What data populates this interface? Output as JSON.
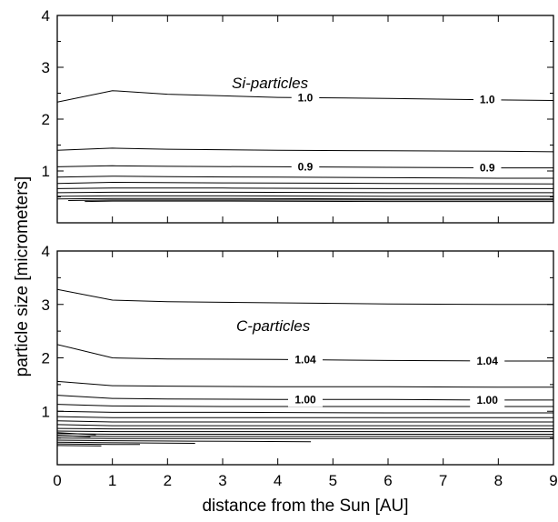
{
  "chart_data": {
    "type": "line",
    "xlabel": "distance from the Sun [AU]",
    "ylabel": "particle size [micrometers]",
    "xlim": [
      0,
      9
    ],
    "ylim": [
      0,
      4
    ],
    "x_ticks": [
      "0",
      "1",
      "2",
      "3",
      "4",
      "5",
      "6",
      "7",
      "8",
      "9"
    ],
    "y_ticks": [
      "1",
      "2",
      "3",
      "4"
    ],
    "panels": [
      {
        "label": "Si-particles",
        "contours": [
          {
            "x": [
              0,
              1,
              2,
              4,
              6,
              8,
              9
            ],
            "y": [
              2.33,
              2.55,
              2.48,
              2.42,
              2.4,
              2.37,
              2.36
            ],
            "label": "1.0"
          },
          {
            "x": [
              0,
              1,
              2,
              4,
              6,
              8,
              9
            ],
            "y": [
              1.4,
              1.44,
              1.42,
              1.4,
              1.39,
              1.38,
              1.37
            ]
          },
          {
            "x": [
              0,
              1,
              2,
              4,
              6,
              8,
              9
            ],
            "y": [
              1.08,
              1.1,
              1.09,
              1.08,
              1.07,
              1.06,
              1.06
            ],
            "label": "0.9"
          },
          {
            "x": [
              0,
              1,
              2,
              4,
              6,
              8,
              9
            ],
            "y": [
              0.88,
              0.9,
              0.89,
              0.88,
              0.87,
              0.86,
              0.86
            ]
          },
          {
            "x": [
              0,
              1,
              3,
              6,
              9
            ],
            "y": [
              0.76,
              0.78,
              0.77,
              0.76,
              0.75
            ]
          },
          {
            "x": [
              0,
              1,
              3,
              6,
              9
            ],
            "y": [
              0.66,
              0.67,
              0.67,
              0.66,
              0.66
            ]
          },
          {
            "x": [
              0,
              1,
              3,
              6,
              9
            ],
            "y": [
              0.58,
              0.59,
              0.59,
              0.58,
              0.58
            ]
          },
          {
            "x": [
              0,
              1,
              3,
              6,
              9
            ],
            "y": [
              0.51,
              0.52,
              0.52,
              0.51,
              0.51
            ]
          },
          {
            "x": [
              0,
              1,
              3,
              6,
              9
            ],
            "y": [
              0.46,
              0.47,
              0.47,
              0.46,
              0.46
            ]
          },
          {
            "x": [
              0.5,
              1,
              3,
              6,
              9
            ],
            "y": [
              0.41,
              0.42,
              0.42,
              0.41,
              0.41
            ]
          },
          {
            "x": [
              0.2,
              1,
              3,
              6,
              9
            ],
            "y": [
              0.43,
              0.44,
              0.44,
              0.44,
              0.44
            ]
          }
        ]
      },
      {
        "label": "C-particles",
        "contours": [
          {
            "x": [
              0,
              1,
              2,
              4,
              6,
              8,
              9
            ],
            "y": [
              3.28,
              3.08,
              3.05,
              3.03,
              3.01,
              3.0,
              3.0
            ]
          },
          {
            "x": [
              0,
              1,
              2,
              4,
              6,
              8,
              9
            ],
            "y": [
              2.25,
              2.0,
              1.98,
              1.97,
              1.95,
              1.94,
              1.94
            ],
            "label": "1.04"
          },
          {
            "x": [
              0,
              1,
              2,
              4,
              6,
              8,
              9
            ],
            "y": [
              1.56,
              1.48,
              1.47,
              1.46,
              1.46,
              1.45,
              1.45
            ]
          },
          {
            "x": [
              0,
              1,
              2,
              4,
              6,
              8,
              9
            ],
            "y": [
              1.3,
              1.24,
              1.23,
              1.22,
              1.22,
              1.21,
              1.21
            ],
            "label": "1.00"
          },
          {
            "x": [
              0,
              1,
              3,
              6,
              9
            ],
            "y": [
              1.13,
              1.1,
              1.09,
              1.09,
              1.09
            ]
          },
          {
            "x": [
              0,
              1,
              3,
              6,
              9
            ],
            "y": [
              1.0,
              0.98,
              0.98,
              0.97,
              0.97
            ]
          },
          {
            "x": [
              0,
              1,
              3,
              6,
              9
            ],
            "y": [
              0.9,
              0.88,
              0.88,
              0.88,
              0.88
            ]
          },
          {
            "x": [
              0,
              1,
              3,
              6,
              9
            ],
            "y": [
              0.82,
              0.8,
              0.8,
              0.8,
              0.8
            ]
          },
          {
            "x": [
              0,
              1,
              3,
              6,
              9
            ],
            "y": [
              0.75,
              0.73,
              0.73,
              0.73,
              0.73
            ]
          },
          {
            "x": [
              0,
              1,
              3,
              6,
              9
            ],
            "y": [
              0.68,
              0.67,
              0.67,
              0.67,
              0.67
            ]
          },
          {
            "x": [
              0,
              1,
              3,
              6,
              9
            ],
            "y": [
              0.63,
              0.62,
              0.62,
              0.62,
              0.62
            ]
          },
          {
            "x": [
              0,
              1,
              3,
              6,
              9
            ],
            "y": [
              0.58,
              0.57,
              0.57,
              0.57,
              0.57
            ]
          },
          {
            "x": [
              0,
              1,
              3,
              6,
              9
            ],
            "y": [
              0.54,
              0.53,
              0.53,
              0.53,
              0.53
            ]
          },
          {
            "x": [
              0,
              1,
              3,
              6,
              9
            ],
            "y": [
              0.5,
              0.49,
              0.49,
              0.49,
              0.49
            ]
          },
          {
            "x": [
              0,
              1,
              2.5,
              4.6
            ],
            "y": [
              0.46,
              0.45,
              0.44,
              0.43
            ]
          },
          {
            "x": [
              0,
              1,
              2.5
            ],
            "y": [
              0.42,
              0.41,
              0.4
            ]
          },
          {
            "x": [
              0,
              1,
              1.5
            ],
            "y": [
              0.39,
              0.38,
              0.38
            ]
          },
          {
            "x": [
              0,
              0.8
            ],
            "y": [
              0.36,
              0.35
            ]
          },
          {
            "x": [
              0,
              0.6
            ],
            "y": [
              0.55,
              0.52
            ]
          },
          {
            "x": [
              0,
              0.7
            ],
            "y": [
              0.6,
              0.56
            ]
          }
        ]
      }
    ]
  }
}
